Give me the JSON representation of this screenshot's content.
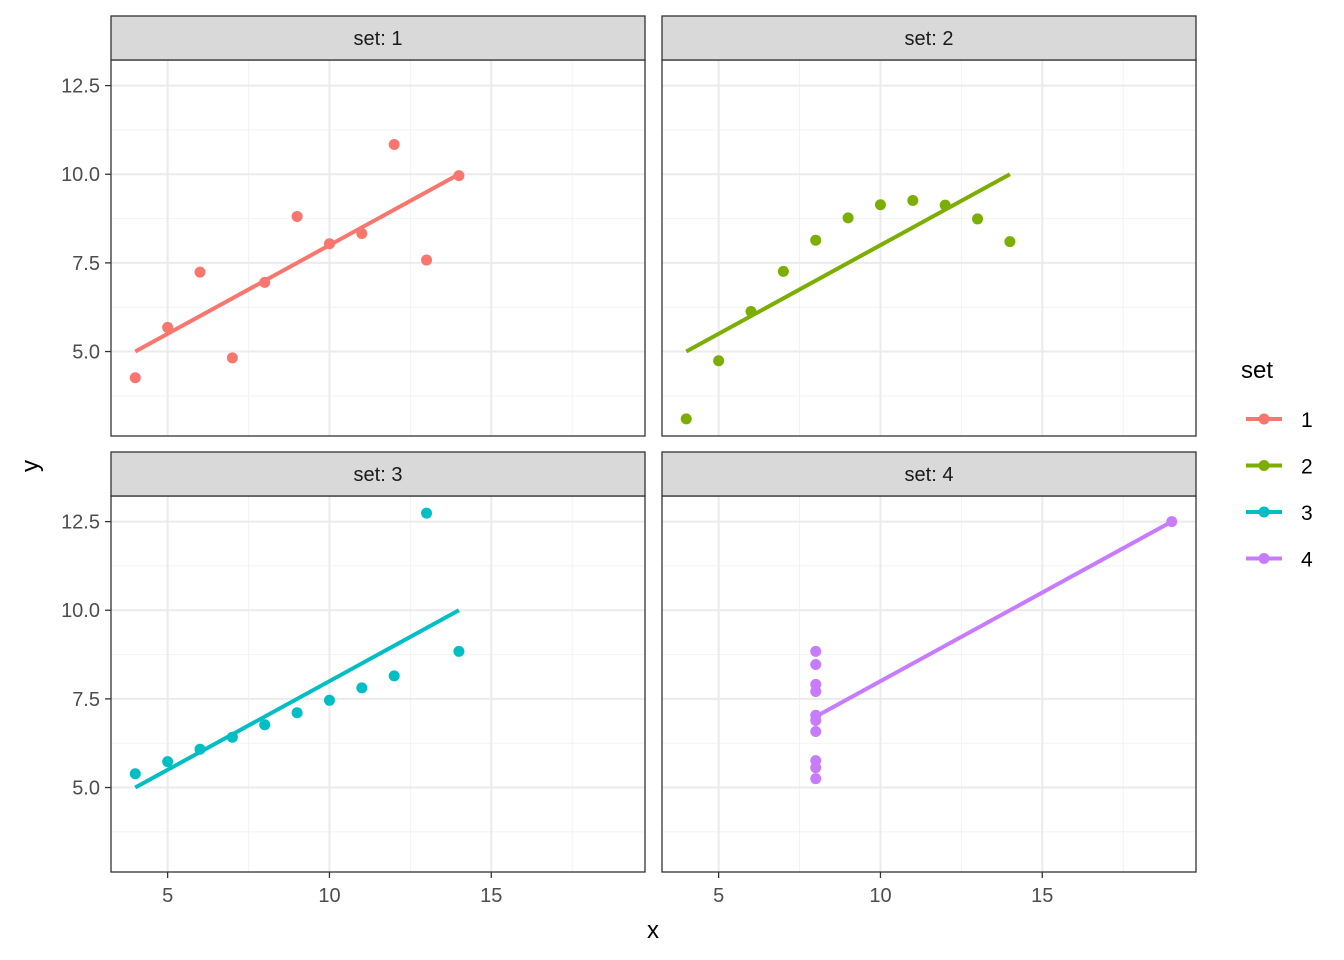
{
  "chart_data": {
    "type": "scatter",
    "facet_label_prefix": "set: ",
    "xlabel": "x",
    "ylabel": "y",
    "xlim": [
      3.25,
      19.75
    ],
    "ylim": [
      2.618,
      13.222
    ],
    "x_ticks": [
      5,
      10,
      15
    ],
    "x_tick_labels": [
      "5",
      "10",
      "15"
    ],
    "y_ticks": [
      5,
      7.5,
      10,
      12.5
    ],
    "y_tick_labels": [
      "5.0",
      "7.5",
      "10.0",
      "12.5"
    ],
    "grid": true,
    "legend": {
      "title": "set",
      "position": "right",
      "entries": [
        "1",
        "2",
        "3",
        "4"
      ]
    },
    "series": [
      {
        "name": "1",
        "color": "#F8766D",
        "x": [
          10,
          8,
          13,
          9,
          11,
          14,
          6,
          4,
          12,
          7,
          5
        ],
        "y": [
          8.04,
          6.95,
          7.58,
          8.81,
          8.33,
          9.96,
          7.24,
          4.26,
          10.84,
          4.82,
          5.68
        ],
        "fit": {
          "intercept": 3.0,
          "slope": 0.5,
          "x_range": [
            4,
            14
          ]
        }
      },
      {
        "name": "2",
        "color": "#7CAE00",
        "x": [
          10,
          8,
          13,
          9,
          11,
          14,
          6,
          4,
          12,
          7,
          5
        ],
        "y": [
          9.14,
          8.14,
          8.74,
          8.77,
          9.26,
          8.1,
          6.13,
          3.1,
          9.13,
          7.26,
          4.74
        ],
        "fit": {
          "intercept": 3.0,
          "slope": 0.5,
          "x_range": [
            4,
            14
          ]
        }
      },
      {
        "name": "3",
        "color": "#00BFC4",
        "x": [
          10,
          8,
          13,
          9,
          11,
          14,
          6,
          4,
          12,
          7,
          5
        ],
        "y": [
          7.46,
          6.77,
          12.74,
          7.11,
          7.81,
          8.84,
          6.08,
          5.39,
          8.15,
          6.42,
          5.73
        ],
        "fit": {
          "intercept": 3.0,
          "slope": 0.5,
          "x_range": [
            4,
            14
          ]
        }
      },
      {
        "name": "4",
        "color": "#C77CFF",
        "x": [
          8,
          8,
          8,
          8,
          8,
          8,
          8,
          19,
          8,
          8,
          8
        ],
        "y": [
          6.58,
          5.76,
          7.71,
          8.84,
          8.47,
          7.04,
          5.25,
          12.5,
          5.56,
          7.91,
          6.89
        ],
        "fit": {
          "intercept": 3.0,
          "slope": 0.5,
          "x_range": [
            8,
            19
          ]
        }
      }
    ]
  }
}
